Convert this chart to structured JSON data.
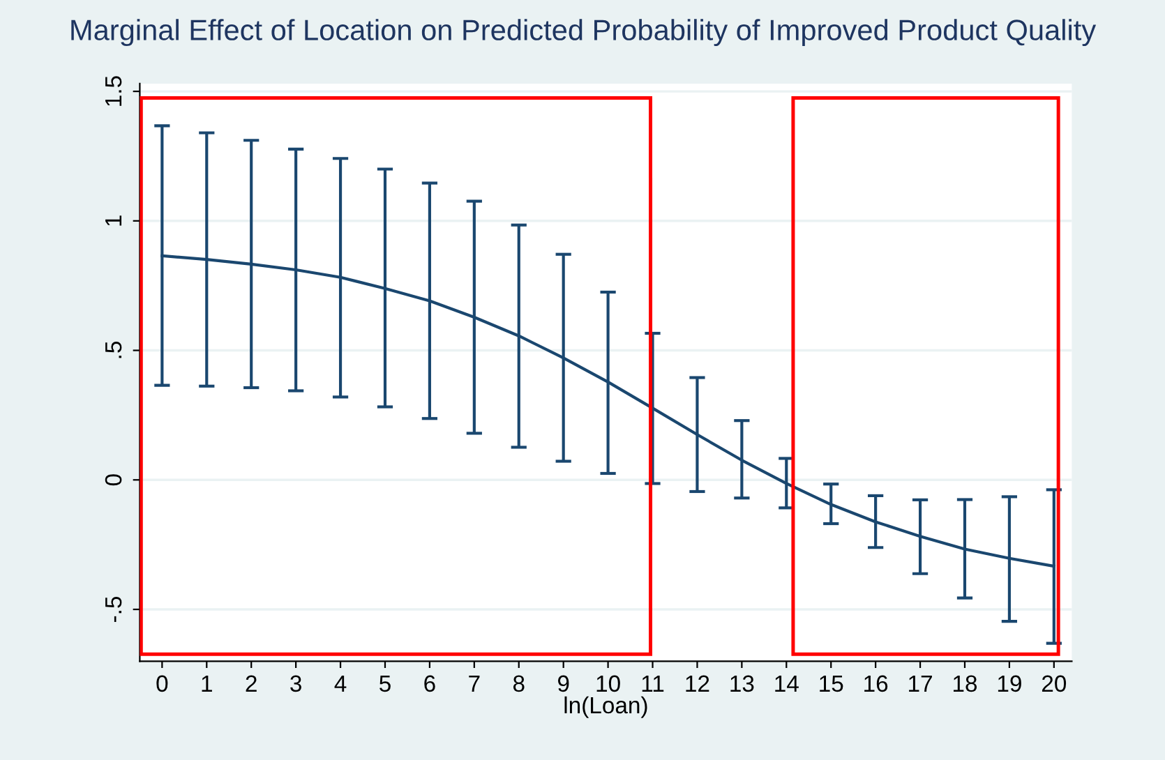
{
  "chart_data": {
    "type": "line",
    "title": "Marginal Effect of Location on Predicted Probability of Improved Product Quality",
    "xlabel": "ln(Loan)",
    "x": [
      0,
      1,
      2,
      3,
      4,
      5,
      6,
      7,
      8,
      9,
      10,
      11,
      12,
      13,
      14,
      15,
      16,
      17,
      18,
      19,
      20
    ],
    "series": [
      {
        "color": "#1a476f",
        "values": [
          0.865,
          0.851,
          0.833,
          0.811,
          0.782,
          0.739,
          0.691,
          0.628,
          0.556,
          0.471,
          0.378,
          0.277,
          0.175,
          0.076,
          -0.014,
          -0.095,
          -0.162,
          -0.218,
          -0.267,
          -0.303,
          -0.333
        ],
        "errors": [
          [
            0.365,
            1.367
          ],
          [
            0.362,
            1.34
          ],
          [
            0.356,
            1.311
          ],
          [
            0.344,
            1.277
          ],
          [
            0.32,
            1.241
          ],
          [
            0.282,
            1.2
          ],
          [
            0.237,
            1.146
          ],
          [
            0.18,
            1.076
          ],
          [
            0.126,
            0.984
          ],
          [
            0.072,
            0.871
          ],
          [
            0.025,
            0.725
          ],
          [
            -0.014,
            0.566
          ],
          [
            -0.045,
            0.395
          ],
          [
            -0.07,
            0.229
          ],
          [
            -0.108,
            0.083
          ],
          [
            -0.169,
            -0.016
          ],
          [
            -0.261,
            -0.061
          ],
          [
            -0.362,
            -0.077
          ],
          [
            -0.456,
            -0.076
          ],
          [
            -0.546,
            -0.065
          ],
          [
            -0.631,
            -0.038
          ]
        ]
      }
    ],
    "xlim": [
      -0.5,
      20.4
    ],
    "ylim": [
      -0.7,
      1.53
    ],
    "xticks": [
      0,
      1,
      2,
      3,
      4,
      5,
      6,
      7,
      8,
      9,
      10,
      11,
      12,
      13,
      14,
      15,
      16,
      17,
      18,
      19,
      20
    ],
    "yticks": [
      {
        "value": -0.5,
        "label": "-.5"
      },
      0,
      {
        "value": 0.5,
        "label": ".5"
      },
      1,
      {
        "value": 1.5,
        "label": "1.5"
      }
    ],
    "grid": "y",
    "marker": "none",
    "line_style": "solid"
  }
}
